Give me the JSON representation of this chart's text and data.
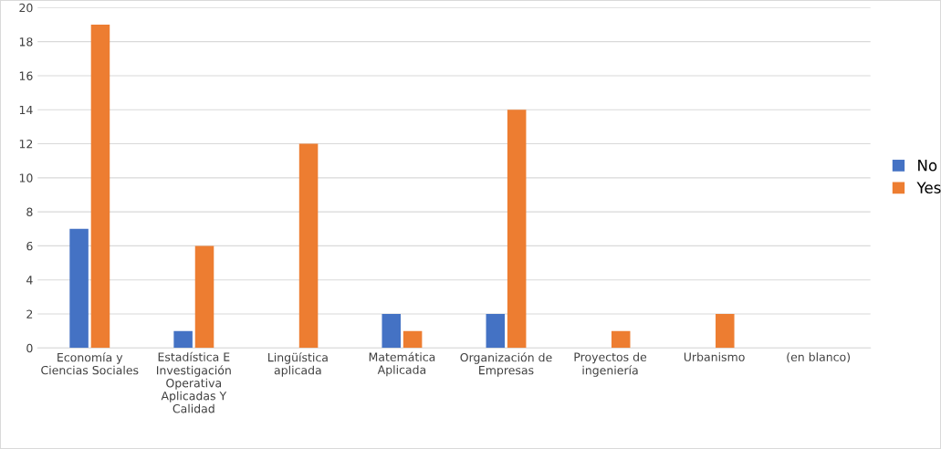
{
  "chart_data": {
    "type": "bar",
    "categories": [
      "Economía y\nCiencias Sociales",
      "Estadística E\nInvestigación\nOperativa\nAplicadas Y\nCalidad",
      "Lingüística\naplicada",
      "Matemática\nAplicada",
      "Organización de\nEmpresas",
      "Proyectos de\ningeniería",
      "Urbanismo",
      "(en blanco)"
    ],
    "series": [
      {
        "name": "No",
        "color": "#4472c4",
        "values": [
          7,
          1,
          null,
          2,
          2,
          null,
          null,
          null
        ]
      },
      {
        "name": "Yes",
        "color": "#ed7d31",
        "values": [
          19,
          6,
          12,
          1,
          14,
          1,
          2,
          null
        ]
      }
    ],
    "ylim": [
      0,
      20
    ],
    "yticks": [
      0,
      2,
      4,
      6,
      8,
      10,
      12,
      14,
      16,
      18,
      20
    ],
    "grid": "y",
    "legend": "right"
  }
}
